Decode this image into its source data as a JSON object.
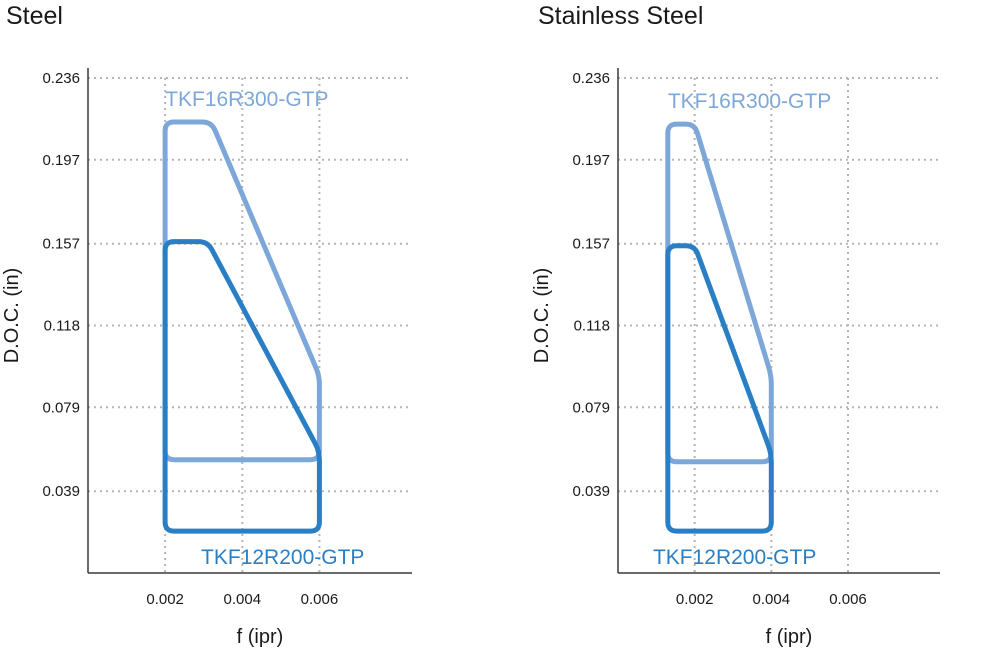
{
  "chart_data": [
    {
      "type": "area",
      "title": "Steel",
      "xlabel": "f (ipr)",
      "ylabel": "D.O.C. (in)",
      "xlim": [
        0,
        0.0084
      ],
      "ylim": [
        0,
        0.236
      ],
      "x_ticks": [
        0.002,
        0.004,
        0.006
      ],
      "x_tick_labels": [
        "0.002",
        "0.004",
        "0.006"
      ],
      "y_ticks": [
        0.039,
        0.079,
        0.118,
        0.157,
        0.197,
        0.236
      ],
      "y_tick_labels": [
        "0.039",
        "0.079",
        "0.118",
        "0.157",
        "0.197",
        "0.236"
      ],
      "grid": true,
      "series": [
        {
          "name": "TKF16R300-GTP",
          "color": "#7da7d9",
          "points": [
            [
              0.002,
              0.054
            ],
            [
              0.002,
              0.215
            ],
            [
              0.0032,
              0.215
            ],
            [
              0.006,
              0.094
            ],
            [
              0.006,
              0.054
            ]
          ]
        },
        {
          "name": "TKF12R200-GTP",
          "color": "#2a7fc4",
          "points": [
            [
              0.002,
              0.02
            ],
            [
              0.002,
              0.158
            ],
            [
              0.0031,
              0.158
            ],
            [
              0.006,
              0.058
            ],
            [
              0.006,
              0.02
            ]
          ]
        }
      ]
    },
    {
      "type": "area",
      "title": "Stainless Steel",
      "xlabel": "f (ipr)",
      "ylabel": "D.O.C. (in)",
      "xlim": [
        0,
        0.0084
      ],
      "ylim": [
        0,
        0.236
      ],
      "x_ticks": [
        0.002,
        0.004,
        0.006
      ],
      "x_tick_labels": [
        "0.002",
        "0.004",
        "0.006"
      ],
      "y_ticks": [
        0.039,
        0.079,
        0.118,
        0.157,
        0.197,
        0.236
      ],
      "y_tick_labels": [
        "0.039",
        "0.079",
        "0.118",
        "0.157",
        "0.197",
        "0.236"
      ],
      "grid": true,
      "series": [
        {
          "name": "TKF16R300-GTP",
          "color": "#7da7d9",
          "points": [
            [
              0.0013,
              0.053
            ],
            [
              0.0013,
              0.214
            ],
            [
              0.002,
              0.214
            ],
            [
              0.004,
              0.094
            ],
            [
              0.004,
              0.053
            ]
          ]
        },
        {
          "name": "TKF12R200-GTP",
          "color": "#2a7fc4",
          "points": [
            [
              0.0013,
              0.02
            ],
            [
              0.0013,
              0.156
            ],
            [
              0.002,
              0.156
            ],
            [
              0.004,
              0.057
            ],
            [
              0.004,
              0.02
            ]
          ]
        }
      ]
    }
  ]
}
